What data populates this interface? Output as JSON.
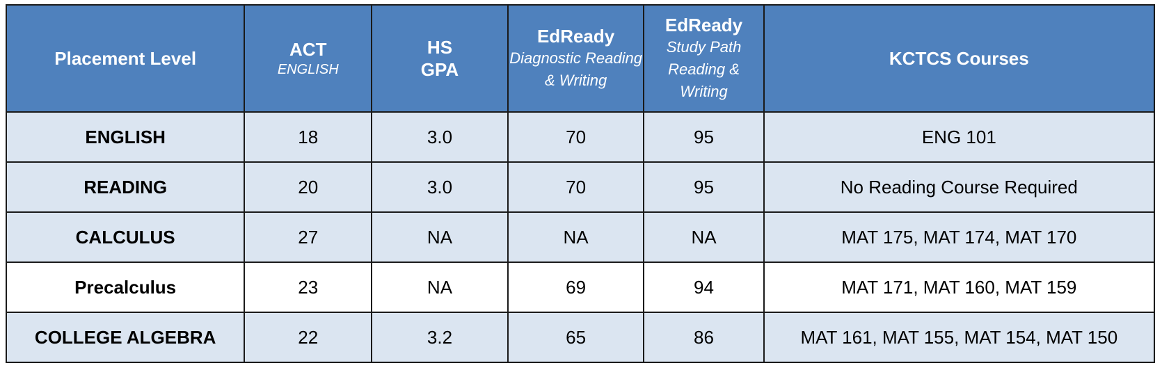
{
  "header": {
    "placement": "Placement Level",
    "act": "ACT",
    "act_sub": "ENGLISH",
    "hs_line1": "HS",
    "hs_line2": "GPA",
    "diag": "EdReady",
    "diag_sub": "Diagnostic Reading & Writing",
    "study": "EdReady",
    "study_sub": "Study Path Reading & Writing",
    "courses": "KCTCS Courses"
  },
  "rows": [
    {
      "level": "ENGLISH",
      "act": "18",
      "gpa": "3.0",
      "diag": "70",
      "study": "95",
      "courses": "ENG 101"
    },
    {
      "level": "READING",
      "act": "20",
      "gpa": "3.0",
      "diag": "70",
      "study": "95",
      "courses": "No Reading Course Required"
    },
    {
      "level": "CALCULUS",
      "act": "27",
      "gpa": "NA",
      "diag": "NA",
      "study": "NA",
      "courses": "MAT 175, MAT 174, MAT 170"
    },
    {
      "level": "Precalculus",
      "act": "23",
      "gpa": "NA",
      "diag": "69",
      "study": "94",
      "courses": "MAT 171, MAT 160, MAT 159"
    },
    {
      "level": "COLLEGE ALGEBRA",
      "act": "22",
      "gpa": "3.2",
      "diag": "65",
      "study": "86",
      "courses": "MAT 161, MAT 155, MAT 154, MAT 150"
    }
  ],
  "colors": {
    "header_bg": "#4f81bd",
    "row_shade": "#dbe5f1",
    "border": "#1a1a1a"
  }
}
